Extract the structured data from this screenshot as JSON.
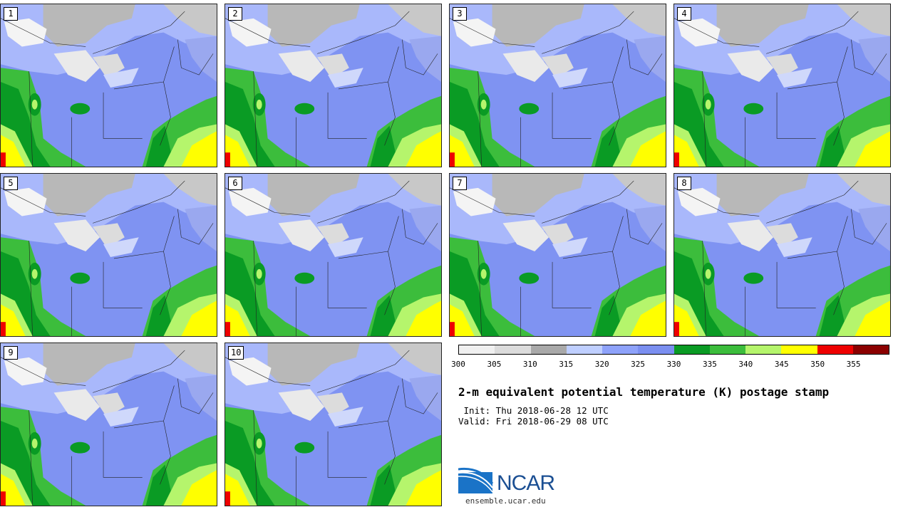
{
  "panels": [
    {
      "label": "1"
    },
    {
      "label": "2"
    },
    {
      "label": "3"
    },
    {
      "label": "4"
    },
    {
      "label": "5"
    },
    {
      "label": "6"
    },
    {
      "label": "7"
    },
    {
      "label": "8"
    },
    {
      "label": "9"
    },
    {
      "label": "10"
    }
  ],
  "colorbar": {
    "colors": [
      "#f0f0f0",
      "#dcdcdc",
      "#a9a9a9",
      "#bfcfff",
      "#8ea2fa",
      "#7b8ff0",
      "#0a9b24",
      "#3cbd3c",
      "#b5f56c",
      "#ffff00",
      "#ee0000",
      "#8b0000"
    ],
    "ticks": [
      "300",
      "305",
      "310",
      "315",
      "320",
      "325",
      "330",
      "335",
      "340",
      "345",
      "350",
      "355"
    ]
  },
  "title": "2-m equivalent potential temperature (K) postage stamp",
  "init": " Init: Thu 2018-06-28 12 UTC",
  "valid": "Valid: Fri 2018-06-29 08 UTC",
  "logo": {
    "text": "NCAR",
    "url": "ensemble.ucar.edu"
  }
}
